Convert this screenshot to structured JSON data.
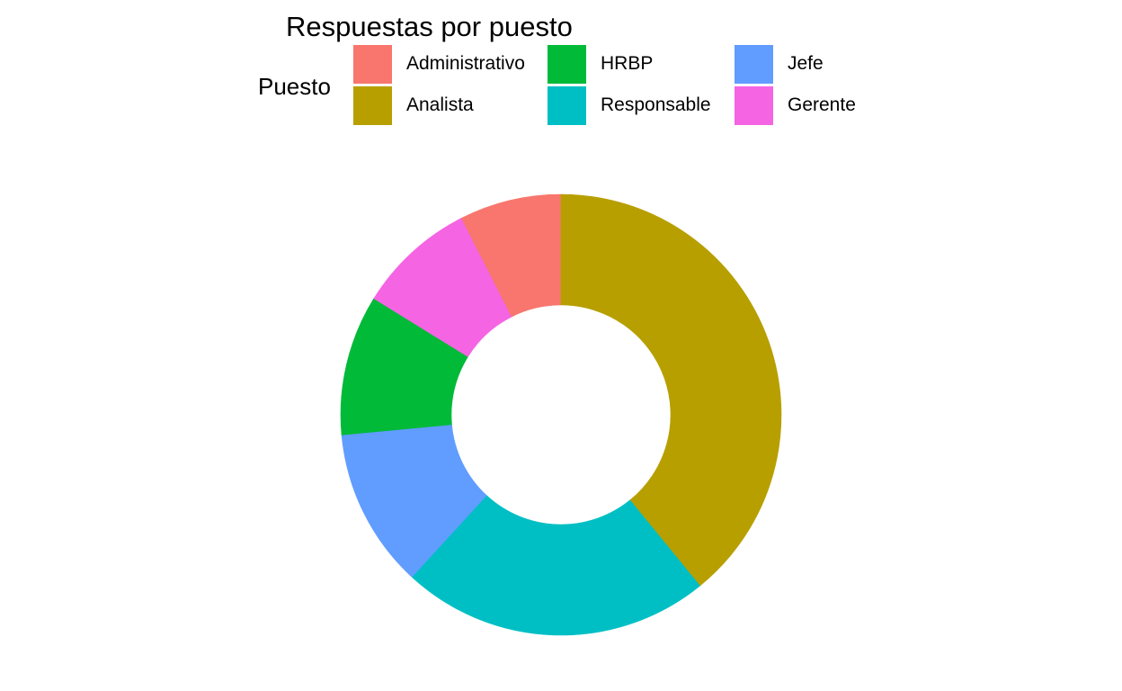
{
  "chart_data": {
    "type": "pie",
    "hole": true,
    "title": "Respuestas por puesto",
    "legend_title": "Puesto",
    "legend_position": "top",
    "categories": [
      "Administrativo",
      "Analista",
      "Gerente",
      "HRBP",
      "Jefe",
      "Responsable"
    ],
    "legend_order": [
      "Administrativo",
      "HRBP",
      "Jefe",
      "Analista",
      "Responsable",
      "Gerente"
    ],
    "values": [
      7.5,
      39.1,
      8.7,
      10.3,
      11.7,
      22.7
    ],
    "colors": {
      "Administrativo": "#F8766D",
      "Analista": "#B79F00",
      "Gerente": "#F564E3",
      "HRBP": "#00BA38",
      "Jefe": "#619CFF",
      "Responsable": "#00BFC4"
    },
    "slice_order": [
      "Administrativo",
      "Gerente",
      "HRBP",
      "Jefe",
      "Responsable",
      "Analista"
    ],
    "start_angle_deg": 0,
    "direction": "counterclockwise"
  }
}
